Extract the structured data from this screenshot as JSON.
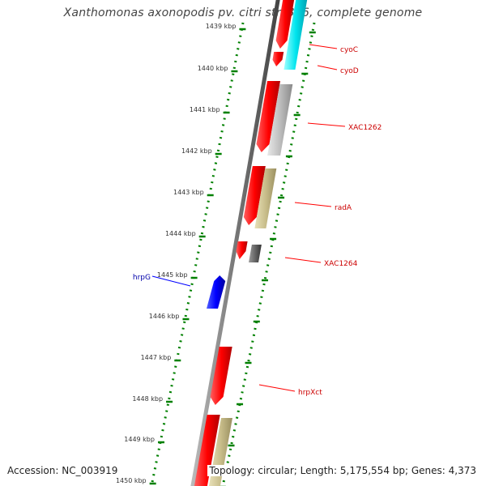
{
  "title": "Xanthomonas axonopodis pv. citri str. 306, complete genome",
  "footer": {
    "accession": "Accession: NC_003919",
    "summary": "Topology: circular; Length: 5,175,554 bp; Genes: 4,373"
  },
  "colors": {
    "forward_gene": "#ff0000",
    "reverse_gene": "#0000ff",
    "tick": "#008000",
    "label_forward": "#cc0000",
    "label_reverse": "#0000aa",
    "cds_cyan": "#00e5ee",
    "cds_gray": "#b8b8b8",
    "cds_olive": "#c8bd8a",
    "cds_dark": "#666666",
    "axis": "#777777"
  },
  "ticks": [
    "1439 kbp",
    "1440 kbp",
    "1441 kbp",
    "1442 kbp",
    "1443 kbp",
    "1444 kbp",
    "1445 kbp",
    "1446 kbp",
    "1447 kbp",
    "1448 kbp",
    "1449 kbp",
    "1450 kbp"
  ],
  "genes_labeled": [
    {
      "name": "cyoC",
      "strand": "forward"
    },
    {
      "name": "cyoD",
      "strand": "forward"
    },
    {
      "name": "XAC1262",
      "strand": "forward"
    },
    {
      "name": "radA",
      "strand": "forward"
    },
    {
      "name": "XAC1264",
      "strand": "forward"
    },
    {
      "name": "hrpG",
      "strand": "reverse"
    },
    {
      "name": "hrpXct",
      "strand": "forward"
    }
  ]
}
